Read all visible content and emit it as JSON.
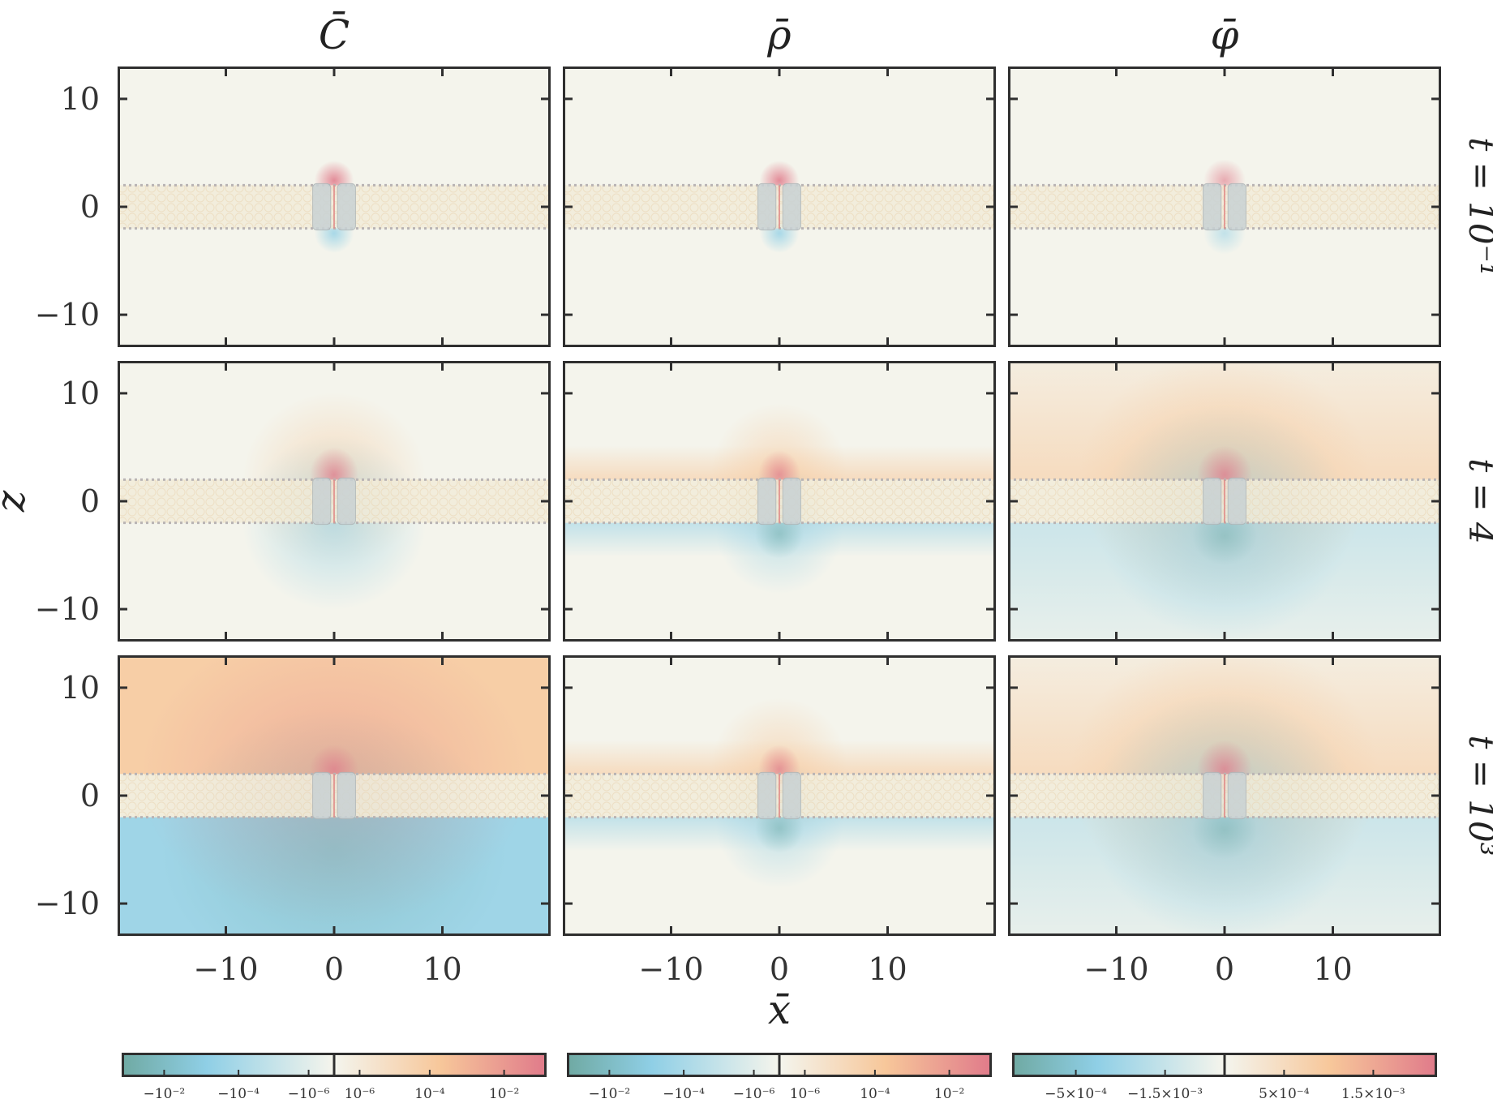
{
  "chart_data": {
    "type": "heatmap",
    "column_titles": [
      "C̄",
      "ρ̄",
      "φ̄"
    ],
    "row_labels": [
      "t̄ = 10⁻¹",
      "t̄ = 4",
      "t̄ = 10³"
    ],
    "xlabel": "x̄",
    "ylabel": "z̄",
    "xlim": [
      -20,
      20
    ],
    "ylim": [
      -13,
      13
    ],
    "x_ticks": [
      -10,
      0,
      10
    ],
    "x_tick_labels": [
      "−10",
      "0",
      "10"
    ],
    "y_ticks": [
      10,
      0,
      -10
    ],
    "y_tick_labels": [
      "10",
      "0",
      "−10"
    ],
    "membrane_z": [
      -2,
      2
    ],
    "channel_x": [
      -1.2,
      1.2
    ],
    "panels": [
      [
        {
          "field": "C",
          "row": 0,
          "col": 0,
          "pattern": "dipole",
          "pos_amp": 0.85,
          "neg_amp": 0.75,
          "radius": 1.4
        },
        {
          "field": "rho",
          "row": 0,
          "col": 1,
          "pattern": "dipole",
          "pos_amp": 0.85,
          "neg_amp": 0.75,
          "radius": 1.4
        },
        {
          "field": "phi",
          "row": 0,
          "col": 2,
          "pattern": "dipole",
          "pos_amp": 0.6,
          "neg_amp": 0.5,
          "radius": 1.5
        }
      ],
      [
        {
          "field": "C",
          "row": 1,
          "col": 0,
          "pattern": "spherical",
          "pos_amp": 0.55,
          "neg_amp": 0.55,
          "radius": 8.5
        },
        {
          "field": "rho",
          "row": 1,
          "col": 1,
          "pattern": "layer",
          "pos_amp": 0.55,
          "neg_amp": 0.5,
          "radius": 4.5
        },
        {
          "field": "phi",
          "row": 1,
          "col": 2,
          "pattern": "broad",
          "pos_amp": 0.7,
          "neg_amp": 0.65,
          "radius": 9
        }
      ],
      [
        {
          "field": "C",
          "row": 2,
          "col": 0,
          "pattern": "saturated",
          "pos_amp": 0.8,
          "neg_amp": 0.8,
          "radius": 10
        },
        {
          "field": "rho",
          "row": 2,
          "col": 1,
          "pattern": "layer",
          "pos_amp": 0.55,
          "neg_amp": 0.5,
          "radius": 4.5
        },
        {
          "field": "phi",
          "row": 2,
          "col": 2,
          "pattern": "broad",
          "pos_amp": 0.75,
          "neg_amp": 0.7,
          "radius": 9.5
        }
      ]
    ],
    "colorbars": [
      {
        "field": "C",
        "neg_labels": [
          "−10⁻²",
          "−10⁻⁴",
          "−10⁻⁶"
        ],
        "pos_labels": [
          "10⁻⁶",
          "10⁻⁴",
          "10⁻²"
        ]
      },
      {
        "field": "rho",
        "neg_labels": [
          "−10⁻²",
          "−10⁻⁴",
          "−10⁻⁶"
        ],
        "pos_labels": [
          "10⁻⁶",
          "10⁻⁴",
          "10⁻²"
        ]
      },
      {
        "field": "phi",
        "neg_labels": [
          "−5×10⁻⁴",
          "−1.5×10⁻³"
        ],
        "pos_labels": [
          "5×10⁻⁴",
          "1.5×10⁻³"
        ]
      }
    ],
    "colormap": {
      "neg_strong": "#6fa9a2",
      "neg_mid": "#8fcfe6",
      "neutral": "#f4f4ec",
      "pos_mid": "#f7c79a",
      "pos_strong": "#e07a8a"
    }
  }
}
